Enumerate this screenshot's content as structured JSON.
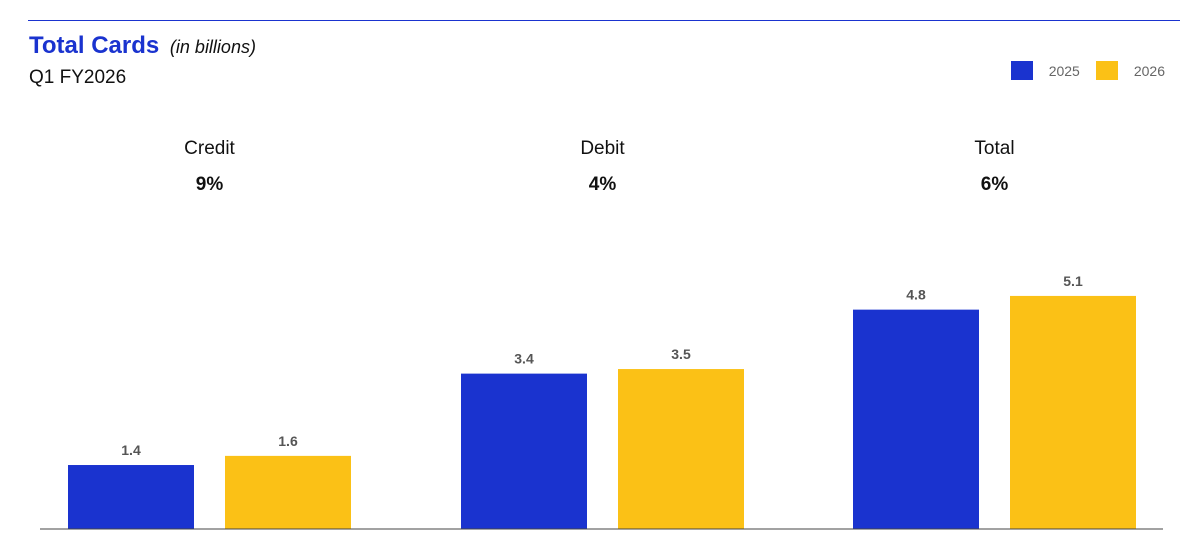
{
  "header": {
    "title": "Total Cards",
    "unit": "(in billions)",
    "subtitle": "Q1 FY2026"
  },
  "chart_data": {
    "type": "bar",
    "title": "Total Cards",
    "subtitle": "Q1 FY2026",
    "categories": [
      "Credit",
      "Debit",
      "Total"
    ],
    "growth": [
      "9%",
      "4%",
      "6%"
    ],
    "series": [
      {
        "name": "2025",
        "color": "#1a33cf",
        "values": [
          1.4,
          3.4,
          4.8
        ]
      },
      {
        "name": "2026",
        "color": "#fbc116",
        "values": [
          1.6,
          3.5,
          5.1
        ]
      }
    ],
    "legend_position": "top-right",
    "grid": false,
    "ylim": [
      0,
      5.5
    ]
  }
}
